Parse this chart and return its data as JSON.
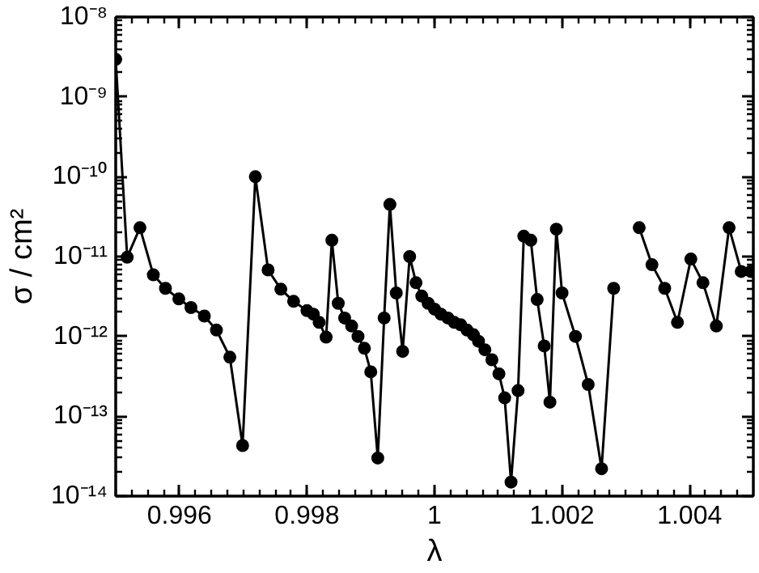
{
  "chart_data": {
    "type": "line",
    "xlabel": "λ",
    "ylabel": "σ / cm²",
    "log": "y",
    "marker": "circle",
    "line_style": "solid",
    "xlim": [
      0.995,
      1.005
    ],
    "xticks": [
      0.996,
      0.998,
      1,
      1.002,
      1.004
    ],
    "ylim": [
      1e-14,
      1e-08
    ],
    "yticks": [
      {
        "value": 1e-14,
        "label": "10⁻¹⁴"
      },
      {
        "value": 1e-13,
        "label": "10⁻¹³"
      },
      {
        "value": 1e-12,
        "label": "10⁻¹²"
      },
      {
        "value": 1e-11,
        "label": "10⁻¹¹"
      },
      {
        "value": 1e-10,
        "label": "10⁻¹⁰"
      },
      {
        "value": 1e-09,
        "label": "10⁻⁹"
      },
      {
        "value": 1e-08,
        "label": "10⁻⁸"
      }
    ],
    "series": [
      {
        "color": "#000000",
        "x": [
          0.995,
          0.99518,
          0.99538,
          0.99559,
          0.99578,
          0.99599,
          0.99618,
          0.99639,
          0.99658,
          0.99679,
          0.99699,
          0.99719,
          0.99739,
          0.99759,
          0.99779,
          0.998,
          0.9981,
          0.99819,
          0.9983,
          0.99839,
          0.99849,
          0.99859,
          0.9987,
          0.9988,
          0.9989,
          0.999,
          0.99911,
          0.99921,
          0.9993,
          0.9994,
          0.9995,
          0.99961,
          0.99971,
          0.9998,
          0.9999,
          1.0,
          1.0001,
          1.00021,
          1.00031,
          1.00041,
          1.00051,
          1.00061,
          1.00069,
          1.00079,
          1.0009,
          1.00101,
          1.0011,
          1.0012,
          1.00131,
          1.0014,
          1.00151,
          1.00161,
          1.00172,
          1.00181,
          1.00191,
          1.002,
          1.00221,
          1.00241,
          1.00262,
          1.00281,
          1.00302,
          1.00321,
          1.00341,
          1.00361,
          1.00381,
          1.00402,
          1.00421,
          1.00442,
          1.00462,
          1.00481,
          1.00496
        ],
        "values": [
          2.95e-09,
          9.8e-12,
          2.3e-11,
          5.9e-12,
          4e-12,
          2.95e-12,
          2.3e-12,
          1.8e-12,
          1.2e-12,
          5.5e-13,
          4.3e-14,
          1e-10,
          6.8e-12,
          3.9e-12,
          2.75e-12,
          2.1e-12,
          1.9e-12,
          1.5e-12,
          9.8e-13,
          1.6e-11,
          2.6e-12,
          1.7e-12,
          1.35e-12,
          1e-12,
          7.1e-13,
          3.6e-13,
          3e-14,
          1.7e-12,
          4.5e-11,
          3.5e-12,
          6.5e-13,
          1e-11,
          4.7e-12,
          3.2e-12,
          2.6e-12,
          2.2e-12,
          1.9e-12,
          1.7e-12,
          1.5e-12,
          1.4e-12,
          1.2e-12,
          1.05e-12,
          8.7e-13,
          6.8e-13,
          5.1e-13,
          3.4e-13,
          1.7e-13,
          1.5e-14,
          2.1e-13,
          1.8e-11,
          1.6e-11,
          2.9e-12,
          7.6e-13,
          1.5e-13,
          2.2e-11,
          3.5e-12,
          1e-12,
          2.5e-13,
          2.2e-14,
          4e-12,
          null,
          2.3e-11,
          7.9e-12,
          4e-12,
          1.5e-12,
          9.3e-12,
          4.7e-12,
          1.35e-12,
          2.3e-11,
          6.5e-12,
          6.5e-12
        ]
      }
    ]
  }
}
